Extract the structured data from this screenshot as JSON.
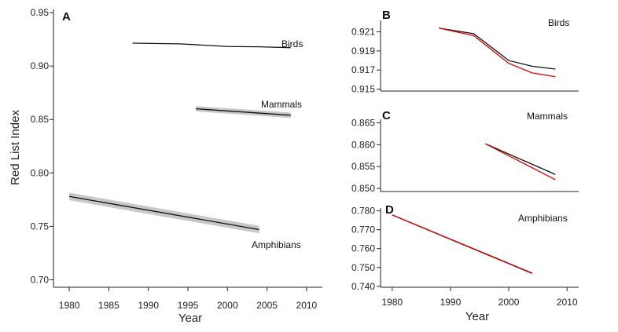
{
  "chart_data": [
    {
      "panel": "A",
      "type": "line",
      "xlabel": "Year",
      "ylabel": "Red List Index",
      "xlim": [
        1978,
        2012
      ],
      "ylim": [
        0.693,
        0.953
      ],
      "xticks": [
        1980,
        1985,
        1990,
        1995,
        2000,
        2005,
        2010
      ],
      "yticks": [
        0.7,
        0.75,
        0.8,
        0.85,
        0.9,
        0.95
      ],
      "ytick_labels": [
        "0.70",
        "0.75",
        "0.80",
        "0.85",
        "0.90",
        "0.95"
      ],
      "series": [
        {
          "name": "Birds",
          "x": [
            1988,
            1994,
            2000,
            2004,
            2008
          ],
          "y": [
            0.9214,
            0.9208,
            0.9183,
            0.918,
            0.9172
          ],
          "band": 0
        },
        {
          "name": "Mammals",
          "x": [
            1996,
            2008
          ],
          "y": [
            0.86,
            0.854
          ],
          "band": 0.0025
        },
        {
          "name": "Amphibians",
          "x": [
            1980,
            2004
          ],
          "y": [
            0.778,
            0.747
          ],
          "band": 0.0035
        }
      ]
    },
    {
      "panel": "B",
      "type": "line",
      "title": "Birds",
      "xlim": [
        1978,
        2012
      ],
      "ylim": [
        0.9148,
        0.9222
      ],
      "yticks": [
        0.915,
        0.917,
        0.919,
        0.921
      ],
      "ytick_labels": [
        "0.915",
        "0.917",
        "0.919",
        "0.921"
      ],
      "series": [
        {
          "name": "black",
          "color": "#111111",
          "x": [
            1988,
            1994,
            2000,
            2004,
            2008
          ],
          "y": [
            0.9214,
            0.9208,
            0.918,
            0.9174,
            0.9171
          ]
        },
        {
          "name": "red",
          "color": "#e00000",
          "x": [
            1988,
            1994,
            2000,
            2004,
            2008
          ],
          "y": [
            0.9214,
            0.9206,
            0.9177,
            0.9167,
            0.9163
          ]
        }
      ]
    },
    {
      "panel": "C",
      "type": "line",
      "title": "Mammals",
      "xlim": [
        1978,
        2012
      ],
      "ylim": [
        0.8493,
        0.8658
      ],
      "yticks": [
        0.85,
        0.855,
        0.86,
        0.865
      ],
      "ytick_labels": [
        "0.850",
        "0.855",
        "0.860",
        "0.865"
      ],
      "series": [
        {
          "name": "black",
          "color": "#111111",
          "x": [
            1996,
            2008
          ],
          "y": [
            0.8602,
            0.8532
          ]
        },
        {
          "name": "red",
          "color": "#e00000",
          "x": [
            1996,
            2008
          ],
          "y": [
            0.8602,
            0.852
          ]
        }
      ]
    },
    {
      "panel": "D",
      "type": "line",
      "title": "Amphibians",
      "xlabel": "Year",
      "xlim": [
        1978,
        2012
      ],
      "ylim": [
        0.7395,
        0.7815
      ],
      "xticks": [
        1980,
        1990,
        2000,
        2010
      ],
      "yticks": [
        0.74,
        0.75,
        0.76,
        0.77,
        0.78
      ],
      "ytick_labels": [
        "0.740",
        "0.750",
        "0.760",
        "0.770",
        "0.780"
      ],
      "series": [
        {
          "name": "black",
          "color": "#111111",
          "x": [
            1980,
            2004
          ],
          "y": [
            0.7778,
            0.747
          ]
        },
        {
          "name": "red",
          "color": "#e00000",
          "x": [
            1980,
            2004
          ],
          "y": [
            0.7778,
            0.7468
          ]
        }
      ]
    }
  ]
}
